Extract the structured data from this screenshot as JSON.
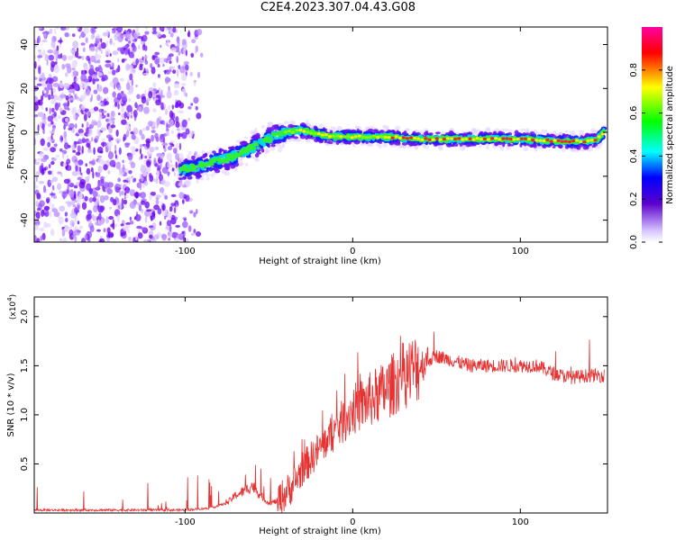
{
  "title": "C2E4.2023.307.04.43.G08",
  "chart_data": [
    {
      "type": "heatmap",
      "xlabel": "Height of straight line (km)",
      "ylabel": "Frequency (Hz)",
      "xlim": [
        -190,
        152
      ],
      "ylim": [
        -50,
        48
      ],
      "xticks": [
        -100,
        0,
        100
      ],
      "yticks": [
        -40,
        -20,
        0,
        20,
        40
      ],
      "noise_region_x": [
        -190,
        -90
      ],
      "ridge": {
        "x": [
          -103,
          -95,
          -85,
          -75,
          -65,
          -55,
          -48,
          -40,
          -30,
          -20,
          -10,
          0,
          20,
          40,
          60,
          80,
          100,
          120,
          140,
          146,
          150
        ],
        "y": [
          -17,
          -16,
          -14,
          -12,
          -9,
          -5,
          -2,
          0,
          1,
          -1,
          -2,
          -2,
          -2,
          -3,
          -3,
          -3,
          -3,
          -4,
          -4,
          -3,
          0
        ]
      },
      "colorbar": {
        "label": "Normalized spectral amplitude",
        "ticks": [
          0.0,
          0.2,
          0.4,
          0.6,
          0.8
        ],
        "tick_labels": [
          "0.0",
          "0.2",
          "0.4",
          "0.6",
          "0.8"
        ],
        "range": [
          0,
          1
        ],
        "stops": [
          "#ffffff",
          "#5a00cc",
          "#0000ff",
          "#00ffff",
          "#00ff00",
          "#ffff00",
          "#ff0000",
          "#ff00a0"
        ]
      }
    },
    {
      "type": "line",
      "xlabel": "Height of straight line (km)",
      "ylabel": "SNR (10 * v/v)",
      "exponent_label": "(x10",
      "exponent_power": "4",
      "exponent_close": ")",
      "xlim": [
        -190,
        152
      ],
      "ylim": [
        0,
        2.2
      ],
      "xticks": [
        -100,
        0,
        100
      ],
      "yticks": [
        0.5,
        1.0,
        1.5,
        2.0
      ],
      "ytick_labels": [
        "0.5",
        "1.0",
        "1.5",
        "2.0"
      ],
      "color": "#e53333",
      "series": [
        {
          "x": [
            -190,
            -150,
            -100,
            -85,
            -75,
            -70,
            -65,
            -60,
            -55,
            -50,
            -45,
            -40,
            -35,
            -30,
            -25,
            -20,
            -15,
            -10,
            -5,
            0,
            10,
            20,
            30,
            40,
            50,
            60,
            70,
            80,
            90,
            100,
            110,
            120,
            130,
            140,
            150
          ],
          "y": [
            0.03,
            0.03,
            0.03,
            0.05,
            0.1,
            0.18,
            0.22,
            0.28,
            0.18,
            0.1,
            0.12,
            0.2,
            0.3,
            0.45,
            0.55,
            0.65,
            0.75,
            0.85,
            0.95,
            1.05,
            1.15,
            1.25,
            1.4,
            1.5,
            1.6,
            1.55,
            1.5,
            1.5,
            1.5,
            1.5,
            1.5,
            1.42,
            1.38,
            1.4,
            1.4
          ]
        }
      ]
    }
  ]
}
